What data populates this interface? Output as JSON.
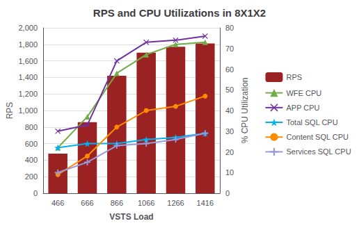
{
  "chart_data": {
    "type": "bar",
    "title": "RPS and CPU Utilizations in 8X1X2",
    "xlabel": "VSTS Load",
    "ylabel": "RPS",
    "y2label": "% CPU Utilization",
    "categories": [
      "466",
      "666",
      "866",
      "1066",
      "1266",
      "1416"
    ],
    "series": [
      {
        "name": "RPS",
        "type": "bar",
        "color": "#9B2222",
        "values": [
          480,
          860,
          1420,
          1700,
          1770,
          1810
        ]
      },
      {
        "name": "WFE CPU",
        "type": "line",
        "axis": "y2",
        "color": "#70AD47",
        "marker": "triangle",
        "values": [
          22,
          37,
          58,
          67,
          72,
          73
        ]
      },
      {
        "name": "APP CPU",
        "type": "line",
        "axis": "y2",
        "color": "#7030A0",
        "marker": "x",
        "values": [
          30,
          33,
          64,
          73,
          74,
          76
        ]
      },
      {
        "name": "Total SQL CPU",
        "type": "line",
        "axis": "y2",
        "color": "#00B0F0",
        "marker": "star",
        "values": [
          22,
          24,
          24,
          26,
          27,
          29
        ]
      },
      {
        "name": "Content SQL CPU",
        "type": "line",
        "axis": "y2",
        "color": "#FF8C00",
        "marker": "circle",
        "values": [
          9,
          18,
          32,
          40,
          42,
          47
        ]
      },
      {
        "name": "Services SQL CPU",
        "type": "line",
        "axis": "y2",
        "color": "#9999DD",
        "marker": "plus",
        "values": [
          10,
          15,
          23,
          24,
          26,
          29
        ]
      }
    ],
    "ylim": [
      0,
      2000
    ],
    "yticks": [
      0,
      200,
      400,
      600,
      800,
      1000,
      1200,
      1400,
      1600,
      1800,
      2000
    ],
    "y2lim": [
      0,
      80
    ],
    "y2ticks": [
      0,
      10,
      20,
      30,
      40,
      50,
      60,
      70,
      80
    ],
    "grid": true,
    "legend": "right"
  }
}
